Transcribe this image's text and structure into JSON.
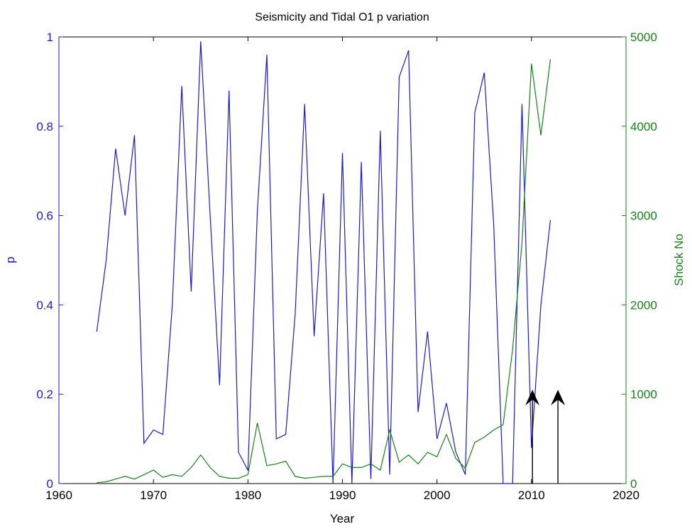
{
  "chart_data": {
    "type": "line",
    "title": "Seismicity and Tidal O1 p variation",
    "xlabel": "Year",
    "ylabel_left": "p",
    "ylabel_right": "Shock No",
    "xlim": [
      1960,
      2020
    ],
    "ylim_left": [
      0,
      1
    ],
    "ylim_right": [
      0,
      5000
    ],
    "x_ticks": [
      "1960",
      "1970",
      "1980",
      "1990",
      "2000",
      "2010",
      "2020"
    ],
    "y_left_ticks": [
      "0",
      "0.2",
      "0.4",
      "0.6",
      "0.8",
      "1"
    ],
    "y_right_ticks": [
      "0",
      "1000",
      "2000",
      "3000",
      "4000",
      "5000"
    ],
    "grid": false,
    "colors": {
      "left_axis": "#1a1acc",
      "right_axis": "#168216",
      "p_series": "#1a1acc",
      "shock_series": "#168216",
      "arrows": "#000000"
    },
    "series": [
      {
        "axis": "left",
        "x": [
          1964,
          1965,
          1966,
          1967,
          1968,
          1969,
          1970,
          1971,
          1972,
          1973,
          1974,
          1975,
          1976,
          1977,
          1978,
          1979,
          1980,
          1981,
          1982,
          1983,
          1984,
          1985,
          1986,
          1987,
          1988,
          1989,
          1990,
          1991,
          1992,
          1993,
          1994,
          1995,
          1996,
          1997,
          1998,
          1999,
          2000,
          2001,
          2002,
          2003,
          2004,
          2005,
          2006,
          2007,
          2008,
          2009,
          2010,
          2011,
          2012
        ],
        "values": [
          0.34,
          0.5,
          0.75,
          0.6,
          0.78,
          0.09,
          0.12,
          0.11,
          0.4,
          0.89,
          0.43,
          0.99,
          0.6,
          0.22,
          0.88,
          0.07,
          0.03,
          0.61,
          0.96,
          0.1,
          0.11,
          0.38,
          0.85,
          0.33,
          0.65,
          0.0,
          0.74,
          0.0,
          0.72,
          0.01,
          0.79,
          0.02,
          0.91,
          0.97,
          0.16,
          0.34,
          0.1,
          0.18,
          0.07,
          0.02,
          0.83,
          0.92,
          0.58,
          0.0,
          0.0,
          0.85,
          0.08,
          0.4,
          0.59
        ]
      },
      {
        "axis": "right",
        "x": [
          1964,
          1965,
          1966,
          1967,
          1968,
          1969,
          1970,
          1971,
          1972,
          1973,
          1974,
          1975,
          1976,
          1977,
          1978,
          1979,
          1980,
          1981,
          1982,
          1983,
          1984,
          1985,
          1986,
          1987,
          1988,
          1989,
          1990,
          1991,
          1992,
          1993,
          1994,
          1995,
          1996,
          1997,
          1998,
          1999,
          2000,
          2001,
          2002,
          2003,
          2004,
          2005,
          2006,
          2007,
          2008,
          2009,
          2010,
          2011,
          2012
        ],
        "values": [
          10,
          20,
          50,
          80,
          50,
          100,
          150,
          70,
          100,
          80,
          180,
          320,
          180,
          80,
          60,
          60,
          100,
          680,
          200,
          220,
          250,
          80,
          60,
          70,
          80,
          80,
          220,
          180,
          180,
          220,
          150,
          600,
          240,
          320,
          220,
          350,
          300,
          550,
          280,
          170,
          460,
          520,
          600,
          660,
          1500,
          2700,
          4700,
          3900,
          4750
        ]
      }
    ],
    "annotations": [
      {
        "type": "arrow",
        "x": 2010.1,
        "y_from": 0.0,
        "y_to": 0.21
      },
      {
        "type": "arrow",
        "x": 2012.8,
        "y_from": 0.0,
        "y_to": 0.21
      }
    ]
  }
}
